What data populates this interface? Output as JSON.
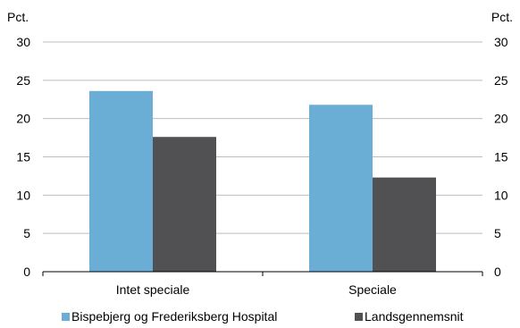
{
  "chart_data": {
    "type": "bar",
    "unit_left": "Pct.",
    "unit_right": "Pct.",
    "categories": [
      "Intet speciale",
      "Speciale"
    ],
    "series": [
      {
        "name": "Bispebjerg og Frederiksberg Hospital",
        "values": [
          23.6,
          21.8
        ],
        "color": "#6aaed6"
      },
      {
        "name": "Landsgennemsnit",
        "values": [
          17.6,
          12.3
        ],
        "color": "#515154"
      }
    ],
    "ylim": [
      0,
      30
    ],
    "yticks": [
      "0",
      "5",
      "10",
      "15",
      "20",
      "25",
      "30"
    ],
    "grid": true,
    "legend_position": "bottom"
  }
}
